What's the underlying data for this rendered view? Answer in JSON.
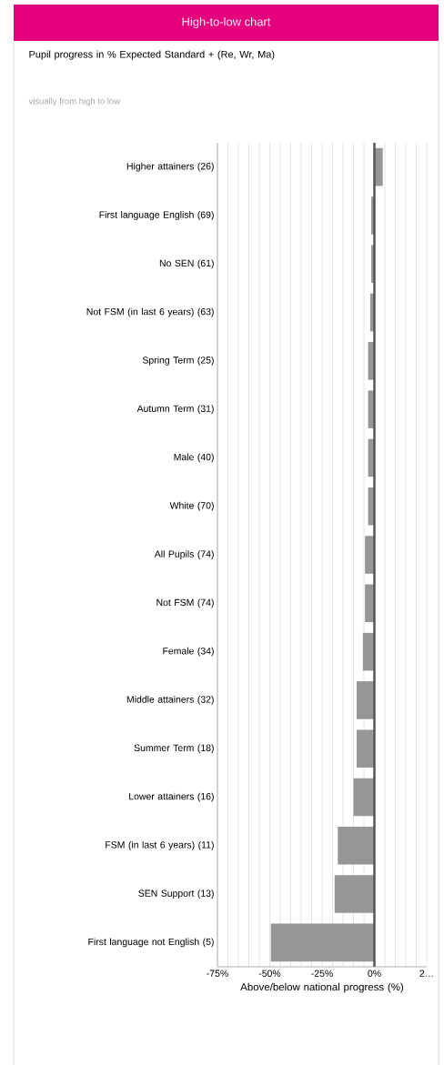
{
  "chart_data": {
    "type": "bar",
    "orientation": "horizontal",
    "title": "High-to-low chart",
    "subtitle": "Pupil progress in % Expected Standard + (Re, Wr, Ma)",
    "annotations": [
      "visually from high to low"
    ],
    "xlabel": "Above/below national progress (%)",
    "categories": [
      "Higher attainers (26)",
      "First language English (69)",
      "No SEN (61)",
      "Not FSM (in last 6 years) (63)",
      "Spring Term (25)",
      "Autumn Term (31)",
      "Male (40)",
      "White (70)",
      "All Pupils (74)",
      "Not FSM (74)",
      "Female (34)",
      "Middle attainers (32)",
      "Summer Term (18)",
      "Lower attainers (16)",
      "FSM (in last 6 years) (11)",
      "SEN Support (13)",
      "First language not English (5)"
    ],
    "values": [
      4,
      -1.5,
      -1.5,
      -2,
      -3,
      -3,
      -3,
      -3,
      -4.5,
      -4.5,
      -5.5,
      -8.5,
      -8.5,
      -10,
      -17.5,
      -19,
      -49.5
    ],
    "color": "#969696",
    "xlim": [
      -75,
      25
    ],
    "xticks": [
      {
        "value": -75,
        "label": "-75%"
      },
      {
        "value": -70,
        "label": null
      },
      {
        "value": -65,
        "label": null
      },
      {
        "value": -60,
        "label": null
      },
      {
        "value": -55,
        "label": null
      },
      {
        "value": -50,
        "label": "-50%"
      },
      {
        "value": -45,
        "label": null
      },
      {
        "value": -40,
        "label": null
      },
      {
        "value": -35,
        "label": null
      },
      {
        "value": -30,
        "label": null
      },
      {
        "value": -25,
        "label": "-25%"
      },
      {
        "value": -20,
        "label": null
      },
      {
        "value": -15,
        "label": null
      },
      {
        "value": -10,
        "label": null
      },
      {
        "value": -5,
        "label": null
      },
      {
        "value": 0,
        "label": "0%"
      },
      {
        "value": 5,
        "label": null
      },
      {
        "value": 10,
        "label": null
      },
      {
        "value": 15,
        "label": null
      },
      {
        "value": 20,
        "label": null
      },
      {
        "value": 25,
        "label": "2…"
      }
    ],
    "grid": "x",
    "ref_lines": [
      {
        "axis": "x",
        "value": 0,
        "color": "#555555"
      }
    ]
  }
}
